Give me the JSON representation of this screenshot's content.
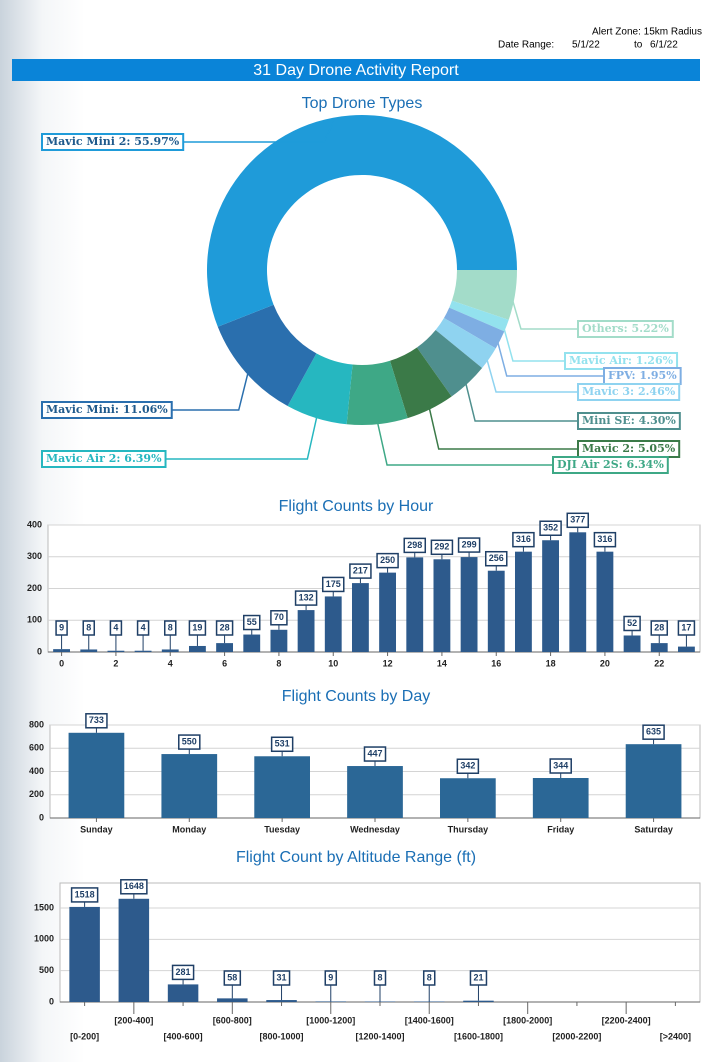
{
  "header": {
    "alert_zone": "Alert Zone: 15km Radius",
    "date_range_label": "Date Range:",
    "start": "5/1/22",
    "end_label": "to",
    "end": "6/1/22"
  },
  "report_title": "31 Day Drone Activity Report",
  "chart_data": [
    {
      "type": "pie",
      "title": "Top Drone Types",
      "donut": true,
      "values": [
        5.22,
        1.26,
        1.95,
        2.46,
        4.3,
        5.05,
        6.34,
        6.39,
        11.06,
        55.97
      ],
      "value_labels": [
        "Others: 5.22%",
        "Mavic Air: 1.26%",
        "FPV: 1.95%",
        "Mavic 3: 2.46%",
        "Mini SE: 4.30%",
        "Mavic 2: 5.05%",
        "DJI Air 2S: 6.34%",
        "Mavic Air 2: 6.39%",
        "Mavic Mini: 11.06%",
        "Mavic Mini 2: 55.97%"
      ],
      "colors": [
        "#a3dcc9",
        "#93e2ee",
        "#7eaee3",
        "#8fd3f0",
        "#4f8f8e",
        "#3b7a48",
        "#3ea886",
        "#26b7c0",
        "#2a6fae",
        "#1f9bd9"
      ]
    },
    {
      "type": "bar",
      "title": "Flight Counts by Hour",
      "color": "#2d5a8c",
      "x": [
        0,
        1,
        2,
        3,
        4,
        5,
        6,
        7,
        8,
        9,
        10,
        11,
        12,
        13,
        14,
        15,
        16,
        17,
        18,
        19,
        20,
        21,
        22,
        23
      ],
      "values": [
        9,
        8,
        4,
        4,
        8,
        19,
        28,
        55,
        70,
        132,
        175,
        217,
        250,
        298,
        292,
        299,
        256,
        316,
        352,
        377,
        316,
        52,
        28,
        17
      ],
      "xlim": [
        -0.5,
        23.5
      ],
      "xticks": [
        0,
        2,
        4,
        6,
        8,
        10,
        12,
        14,
        16,
        18,
        20,
        22
      ],
      "ylim": [
        0,
        400
      ],
      "yticks": [
        0,
        100,
        200,
        300,
        400
      ],
      "grid": true
    },
    {
      "type": "bar",
      "title": "Flight Counts by Day",
      "color": "#2b6796",
      "categories": [
        "Sunday",
        "Monday",
        "Tuesday",
        "Wednesday",
        "Thursday",
        "Friday",
        "Saturday"
      ],
      "values": [
        733,
        550,
        531,
        447,
        342,
        344,
        635
      ],
      "ylim": [
        0,
        800
      ],
      "yticks": [
        0,
        200,
        400,
        600,
        800
      ],
      "grid": true
    },
    {
      "type": "bar",
      "title": "Flight Count by Altitude Range (ft)",
      "color": "#2d5a8c",
      "categories": [
        "[0-200]",
        "[200-400]",
        "[400-600]",
        "[600-800]",
        "[800-1000]",
        "[1000-1200]",
        "[1200-1400]",
        "[1400-1600]",
        "[1600-1800]",
        "[1800-2000]",
        "[2000-2200]",
        "[2200-2400]",
        "[>2400]"
      ],
      "values": [
        1518,
        1648,
        281,
        58,
        31,
        9,
        8,
        8,
        21,
        0,
        0,
        0,
        0
      ],
      "ylim": [
        0,
        1900
      ],
      "yticks": [
        0,
        500,
        1000,
        1500
      ],
      "grid": true
    }
  ]
}
